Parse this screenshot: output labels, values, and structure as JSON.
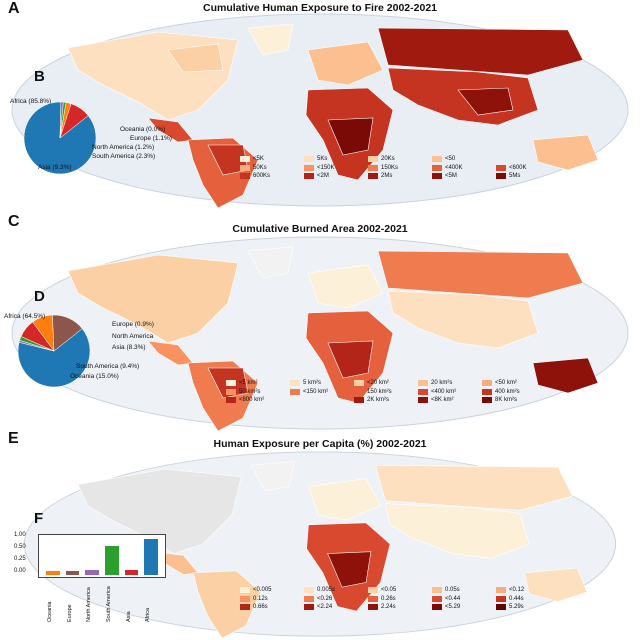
{
  "panels": [
    {
      "letter": "A",
      "title": "Cumulative Human Exposure to Fire 2002-2021",
      "inset_letter": "B",
      "legend": [
        {
          "label": "<5K",
          "color": "#fdf0d9"
        },
        {
          "label": "5Ks",
          "color": "#fde0bf"
        },
        {
          "label": "20Ks",
          "color": "#fcd0a5"
        },
        {
          "label": "<50",
          "color": "#fcbf8f"
        },
        {
          "label": "",
          "color": "#ffffff"
        },
        {
          "label": "50Ks",
          "color": "#fcab7e"
        },
        {
          "label": "<150K",
          "color": "#f99160"
        },
        {
          "label": "150Ks",
          "color": "#f07b4f"
        },
        {
          "label": "<400K",
          "color": "#e5603d"
        },
        {
          "label": "<600K",
          "color": "#d94930"
        },
        {
          "label": "600Ks",
          "color": "#c43421"
        },
        {
          "label": "<2M",
          "color": "#b32518"
        },
        {
          "label": "2Ms",
          "color": "#a01a10"
        },
        {
          "label": "<5M",
          "color": "#8f120a"
        },
        {
          "label": "5Ms",
          "color": "#7a0a06"
        }
      ]
    },
    {
      "letter": "C",
      "title": "Cumulative Burned Area 2002-2021",
      "inset_letter": "D",
      "legend": [
        {
          "label": "<5 km²",
          "color": "#fdf0d9"
        },
        {
          "label": "5 km²s",
          "color": "#fde0bf"
        },
        {
          "label": "<20 km²",
          "color": "#fcd0a5"
        },
        {
          "label": "20 km²s",
          "color": "#fcbf8f"
        },
        {
          "label": "<50 km²",
          "color": "#fcab7e"
        },
        {
          "label": "50 km²s",
          "color": "#f99160"
        },
        {
          "label": "<150 km²",
          "color": "#f07b4f"
        },
        {
          "label": "150 km²s",
          "color": "#e5603d"
        },
        {
          "label": "<400 km²",
          "color": "#d94930"
        },
        {
          "label": "400 km²s",
          "color": "#c43421"
        },
        {
          "label": "<800 km²",
          "color": "#b32518"
        },
        {
          "label": "",
          "color": "#ffffff"
        },
        {
          "label": "2K km²s",
          "color": "#a01a10"
        },
        {
          "label": "<8K km²",
          "color": "#8f120a"
        },
        {
          "label": "8K km²s",
          "color": "#7a0a06"
        }
      ]
    },
    {
      "letter": "E",
      "title": "Human Exposure per Capita (%) 2002-2021",
      "inset_letter": "F",
      "legend": [
        {
          "label": "<0.005",
          "color": "#fdf0d9"
        },
        {
          "label": "0.005s",
          "color": "#fde0bf"
        },
        {
          "label": "<0.05",
          "color": "#fcd0a5"
        },
        {
          "label": "0.05s",
          "color": "#fcbf8f"
        },
        {
          "label": "<0.12",
          "color": "#fcab7e"
        },
        {
          "label": "0.12s",
          "color": "#f99160"
        },
        {
          "label": "<0.26",
          "color": "#f07b4f"
        },
        {
          "label": "0.26s",
          "color": "#e5603d"
        },
        {
          "label": "<0.44",
          "color": "#d94930"
        },
        {
          "label": "0.44s",
          "color": "#c43421"
        },
        {
          "label": "0.66s",
          "color": "#b32518"
        },
        {
          "label": "<2.24",
          "color": "#a01a10"
        },
        {
          "label": "2.24s",
          "color": "#8f120a"
        },
        {
          "label": "<5.29",
          "color": "#7a0a06"
        },
        {
          "label": "5.29s",
          "color": "#5e0503"
        }
      ]
    }
  ],
  "chart_data": [
    {
      "type": "pie",
      "panel": "B",
      "slices": [
        {
          "label": "Africa (85.8%)",
          "value": 85.8,
          "color": "#1f77b4"
        },
        {
          "label": "Oceania (0.0%)",
          "value": 0.0,
          "color": "#17becf"
        },
        {
          "label": "Europe (1.1%)",
          "value": 1.1,
          "color": "#9467bd"
        },
        {
          "label": "North America (1.2%)",
          "value": 1.2,
          "color": "#2ca02c"
        },
        {
          "label": "South America (2.3%)",
          "value": 2.3,
          "color": "#ff7f0e"
        },
        {
          "label": "Asia (9.3%)",
          "value": 9.3,
          "color": "#d62728"
        }
      ]
    },
    {
      "type": "pie",
      "panel": "D",
      "slices": [
        {
          "label": "Africa (64.5%)",
          "value": 64.5,
          "color": "#1f77b4"
        },
        {
          "label": "Europe (0.9%)",
          "value": 0.9,
          "color": "#9467bd"
        },
        {
          "label": "North America",
          "value": 1.8,
          "color": "#2ca02c"
        },
        {
          "label": "Asia (8.3%)",
          "value": 8.3,
          "color": "#d62728"
        },
        {
          "label": "South America (9.4%)",
          "value": 9.4,
          "color": "#ff7f0e"
        },
        {
          "label": "Oceania (15.0%)",
          "value": 15.0,
          "color": "#8c564b"
        }
      ]
    },
    {
      "type": "bar",
      "panel": "F",
      "categories": [
        "Oceania",
        "Europe",
        "North America",
        "South America",
        "Asia",
        "Africa"
      ],
      "values": [
        0.1,
        0.1,
        0.14,
        0.8,
        0.15,
        1.0
      ],
      "colors": [
        "#ff7f0e",
        "#8c564b",
        "#9467bd",
        "#2ca02c",
        "#d62728",
        "#1f77b4"
      ],
      "yticks": [
        "1.00",
        "0.50",
        "0.25",
        "0.00"
      ],
      "ylim": [
        0,
        1.0
      ]
    }
  ]
}
